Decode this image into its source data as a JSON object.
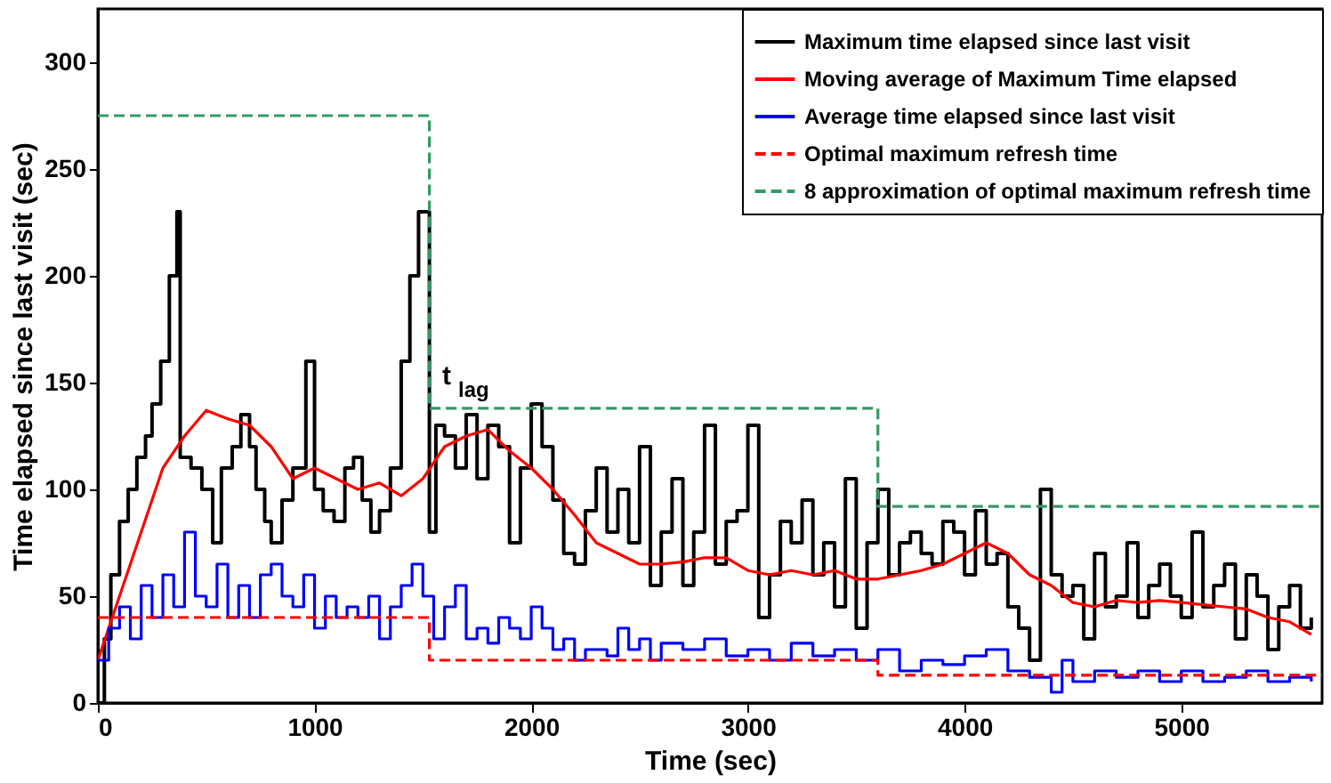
{
  "chart_data": {
    "type": "step",
    "xlabel": "Time (sec)",
    "ylabel": "Time elapsed since last visit (sec)",
    "xlim": [
      0,
      5650
    ],
    "ylim": [
      0,
      325
    ],
    "xticks": [
      0,
      1000,
      2000,
      3000,
      4000,
      5000
    ],
    "yticks": [
      0,
      50,
      100,
      150,
      200,
      250,
      300
    ],
    "grid": false,
    "legend": "top right",
    "annotations": [
      {
        "text": "t$_{lag}$",
        "x": 1540,
        "y": 140
      }
    ],
    "series": [
      {
        "name": "Maximum time elapsed since last visit",
        "type": "step",
        "color": "#000000",
        "line_style": "solid",
        "x": [
          0,
          30,
          60,
          100,
          140,
          180,
          220,
          250,
          290,
          330,
          365,
          380,
          430,
          480,
          530,
          570,
          620,
          660,
          700,
          730,
          770,
          800,
          850,
          900,
          960,
          1000,
          1040,
          1090,
          1140,
          1180,
          1220,
          1260,
          1300,
          1350,
          1400,
          1440,
          1480,
          1530,
          1560,
          1600,
          1650,
          1700,
          1750,
          1800,
          1850,
          1900,
          1950,
          2000,
          2050,
          2100,
          2150,
          2200,
          2250,
          2300,
          2350,
          2400,
          2450,
          2500,
          2550,
          2600,
          2650,
          2700,
          2750,
          2800,
          2850,
          2900,
          2950,
          3000,
          3050,
          3100,
          3150,
          3200,
          3250,
          3300,
          3350,
          3400,
          3450,
          3500,
          3550,
          3600,
          3650,
          3700,
          3750,
          3800,
          3850,
          3900,
          3950,
          4000,
          4050,
          4100,
          4150,
          4200,
          4250,
          4300,
          4350,
          4400,
          4450,
          4500,
          4550,
          4600,
          4650,
          4700,
          4750,
          4800,
          4850,
          4900,
          4950,
          5000,
          5050,
          5100,
          5150,
          5200,
          5250,
          5300,
          5350,
          5400,
          5450,
          5500,
          5550,
          5600
        ],
        "values": [
          0,
          30,
          60,
          85,
          100,
          115,
          125,
          140,
          160,
          200,
          230,
          115,
          110,
          100,
          75,
          110,
          120,
          135,
          120,
          100,
          85,
          75,
          95,
          110,
          160,
          100,
          90,
          85,
          110,
          115,
          95,
          80,
          90,
          110,
          160,
          200,
          230,
          80,
          130,
          125,
          110,
          135,
          105,
          130,
          120,
          75,
          110,
          140,
          120,
          95,
          70,
          65,
          90,
          110,
          80,
          100,
          75,
          120,
          55,
          80,
          105,
          55,
          80,
          130,
          65,
          85,
          90,
          130,
          40,
          60,
          85,
          75,
          95,
          60,
          75,
          45,
          105,
          35,
          75,
          100,
          60,
          75,
          80,
          70,
          65,
          85,
          80,
          60,
          90,
          65,
          70,
          45,
          35,
          20,
          100,
          60,
          50,
          55,
          30,
          70,
          45,
          50,
          75,
          40,
          55,
          65,
          50,
          40,
          80,
          45,
          55,
          65,
          30,
          60,
          50,
          25,
          45,
          55,
          35,
          40
        ]
      },
      {
        "name": "Moving average of Maximum Time elapsed",
        "type": "line",
        "color": "#ff0000",
        "line_style": "solid",
        "x": [
          0,
          100,
          200,
          300,
          400,
          500,
          600,
          700,
          800,
          900,
          1000,
          1100,
          1200,
          1300,
          1400,
          1500,
          1600,
          1700,
          1800,
          1900,
          2000,
          2100,
          2200,
          2300,
          2400,
          2500,
          2600,
          2700,
          2800,
          2900,
          3000,
          3100,
          3200,
          3300,
          3400,
          3500,
          3600,
          3700,
          3800,
          3900,
          4000,
          4100,
          4200,
          4300,
          4400,
          4500,
          4600,
          4700,
          4800,
          4900,
          5000,
          5100,
          5200,
          5300,
          5400,
          5500,
          5600
        ],
        "values": [
          20,
          50,
          80,
          110,
          125,
          137,
          133,
          130,
          120,
          105,
          110,
          105,
          100,
          103,
          97,
          105,
          120,
          125,
          128,
          118,
          110,
          100,
          88,
          75,
          70,
          65,
          65,
          66,
          68,
          68,
          62,
          60,
          62,
          60,
          62,
          58,
          58,
          60,
          62,
          65,
          70,
          75,
          70,
          60,
          55,
          47,
          45,
          48,
          47,
          48,
          47,
          46,
          45,
          44,
          40,
          38,
          32
        ]
      },
      {
        "name": "Average time elapsed since last visit",
        "type": "step",
        "color": "#0000ff",
        "line_style": "solid",
        "x": [
          0,
          50,
          100,
          150,
          200,
          250,
          300,
          350,
          400,
          450,
          500,
          550,
          600,
          650,
          700,
          750,
          800,
          850,
          900,
          950,
          1000,
          1050,
          1100,
          1150,
          1200,
          1250,
          1300,
          1350,
          1400,
          1450,
          1500,
          1550,
          1600,
          1650,
          1700,
          1750,
          1800,
          1850,
          1900,
          1950,
          2000,
          2050,
          2100,
          2150,
          2200,
          2250,
          2300,
          2350,
          2400,
          2450,
          2500,
          2550,
          2600,
          2700,
          2800,
          2900,
          3000,
          3100,
          3200,
          3300,
          3400,
          3500,
          3600,
          3700,
          3800,
          3900,
          4000,
          4100,
          4200,
          4300,
          4400,
          4450,
          4500,
          4600,
          4700,
          4800,
          4900,
          5000,
          5100,
          5200,
          5300,
          5400,
          5500,
          5600
        ],
        "values": [
          20,
          35,
          45,
          30,
          55,
          40,
          60,
          45,
          80,
          50,
          45,
          65,
          40,
          55,
          40,
          60,
          65,
          50,
          45,
          60,
          35,
          50,
          40,
          45,
          40,
          50,
          30,
          45,
          55,
          65,
          50,
          30,
          45,
          55,
          30,
          35,
          28,
          40,
          35,
          30,
          45,
          35,
          25,
          30,
          20,
          25,
          25,
          22,
          35,
          25,
          30,
          20,
          28,
          25,
          30,
          22,
          25,
          20,
          28,
          22,
          25,
          20,
          25,
          15,
          20,
          18,
          22,
          25,
          15,
          12,
          5,
          20,
          10,
          15,
          12,
          15,
          10,
          15,
          10,
          12,
          15,
          10,
          12,
          10
        ]
      },
      {
        "name": "Optimal maximum refresh time",
        "type": "step",
        "color": "#ff0000",
        "line_style": "dashed",
        "x": [
          0,
          1530,
          3600,
          5650
        ],
        "values": [
          40,
          20,
          13,
          13
        ]
      },
      {
        "name": "8 approximation of optimal maximum refresh time",
        "type": "step",
        "color": "#339966",
        "line_style": "dashed",
        "x": [
          0,
          1530,
          3600,
          5650
        ],
        "values": [
          275,
          138,
          92,
          92
        ]
      }
    ]
  }
}
